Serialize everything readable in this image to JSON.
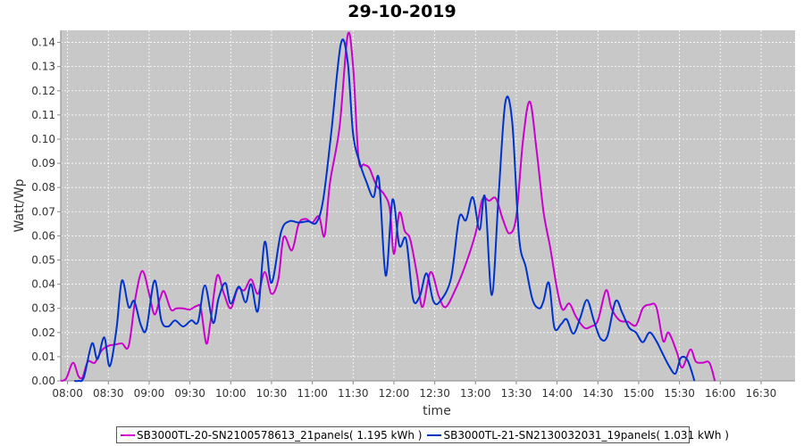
{
  "chart_data": {
    "type": "line",
    "title": "29-10-2019",
    "xlabel": "time",
    "ylabel": "Watt/Wp",
    "xlim": [
      "07:55",
      "16:55"
    ],
    "ylim": [
      0,
      0.145
    ],
    "xticks": [
      "08:00",
      "08:30",
      "09:00",
      "09:30",
      "10:00",
      "10:30",
      "11:00",
      "11:30",
      "12:00",
      "12:30",
      "13:00",
      "13:30",
      "14:00",
      "14:30",
      "15:00",
      "15:30",
      "16:00",
      "16:30"
    ],
    "yticks": [
      "0.00",
      "0.01",
      "0.02",
      "0.03",
      "0.04",
      "0.05",
      "0.06",
      "0.07",
      "0.08",
      "0.09",
      "0.10",
      "0.11",
      "0.12",
      "0.13",
      "0.14"
    ],
    "grid": true,
    "legend_position": "bottom",
    "plot_background": "#c8c8c8",
    "series": [
      {
        "name": "SB3000TL-20-SN2100578613_21panels( 1.195 kWh )",
        "color": "#cc00cc",
        "points": [
          [
            "07:55",
            0.0
          ],
          [
            "07:59",
            0.001
          ],
          [
            "08:04",
            0.0075
          ],
          [
            "08:08",
            0.002
          ],
          [
            "08:11",
            0.0015
          ],
          [
            "08:15",
            0.008
          ],
          [
            "08:20",
            0.0075
          ],
          [
            "08:25",
            0.0125
          ],
          [
            "08:30",
            0.0145
          ],
          [
            "08:35",
            0.015
          ],
          [
            "08:40",
            0.0155
          ],
          [
            "08:45",
            0.0145
          ],
          [
            "08:50",
            0.0345
          ],
          [
            "08:55",
            0.0455
          ],
          [
            "09:00",
            0.036
          ],
          [
            "09:04",
            0.0275
          ],
          [
            "09:08",
            0.034
          ],
          [
            "09:11",
            0.037
          ],
          [
            "09:16",
            0.0295
          ],
          [
            "09:20",
            0.03
          ],
          [
            "09:25",
            0.03
          ],
          [
            "09:30",
            0.0295
          ],
          [
            "09:35",
            0.031
          ],
          [
            "09:38",
            0.03
          ],
          [
            "09:42",
            0.0155
          ],
          [
            "09:45",
            0.024
          ],
          [
            "09:50",
            0.0435
          ],
          [
            "09:55",
            0.036
          ],
          [
            "10:00",
            0.03
          ],
          [
            "10:05",
            0.038
          ],
          [
            "10:10",
            0.0375
          ],
          [
            "10:15",
            0.042
          ],
          [
            "10:20",
            0.036
          ],
          [
            "10:25",
            0.045
          ],
          [
            "10:30",
            0.036
          ],
          [
            "10:35",
            0.042
          ],
          [
            "10:39",
            0.0595
          ],
          [
            "10:45",
            0.054
          ],
          [
            "10:50",
            0.065
          ],
          [
            "10:55",
            0.067
          ],
          [
            "11:00",
            0.0655
          ],
          [
            "11:05",
            0.068
          ],
          [
            "11:09",
            0.06
          ],
          [
            "11:13",
            0.082
          ],
          [
            "11:20",
            0.105
          ],
          [
            "11:26",
            0.143
          ],
          [
            "11:30",
            0.13
          ],
          [
            "11:34",
            0.092
          ],
          [
            "11:38",
            0.0895
          ],
          [
            "11:42",
            0.088
          ],
          [
            "11:47",
            0.081
          ],
          [
            "11:53",
            0.077
          ],
          [
            "11:57",
            0.071
          ],
          [
            "12:00",
            0.0525
          ],
          [
            "12:04",
            0.0695
          ],
          [
            "12:08",
            0.062
          ],
          [
            "12:12",
            0.0585
          ],
          [
            "12:17",
            0.044
          ],
          [
            "12:21",
            0.0305
          ],
          [
            "12:27",
            0.045
          ],
          [
            "12:33",
            0.035
          ],
          [
            "12:38",
            0.0305
          ],
          [
            "12:45",
            0.0375
          ],
          [
            "12:52",
            0.047
          ],
          [
            "13:00",
            0.061
          ],
          [
            "13:05",
            0.075
          ],
          [
            "13:10",
            0.0745
          ],
          [
            "13:15",
            0.0755
          ],
          [
            "13:20",
            0.067
          ],
          [
            "13:25",
            0.061
          ],
          [
            "13:30",
            0.068
          ],
          [
            "13:35",
            0.1
          ],
          [
            "13:40",
            0.1155
          ],
          [
            "13:45",
            0.095
          ],
          [
            "13:50",
            0.07
          ],
          [
            "13:55",
            0.055
          ],
          [
            "14:00",
            0.038
          ],
          [
            "14:04",
            0.0295
          ],
          [
            "14:09",
            0.032
          ],
          [
            "14:14",
            0.0265
          ],
          [
            "14:20",
            0.022
          ],
          [
            "14:25",
            0.0225
          ],
          [
            "14:30",
            0.025
          ],
          [
            "14:36",
            0.0375
          ],
          [
            "14:40",
            0.03
          ],
          [
            "14:46",
            0.025
          ],
          [
            "14:52",
            0.0245
          ],
          [
            "14:58",
            0.023
          ],
          [
            "15:03",
            0.03
          ],
          [
            "15:08",
            0.0315
          ],
          [
            "15:13",
            0.0305
          ],
          [
            "15:18",
            0.0165
          ],
          [
            "15:22",
            0.02
          ],
          [
            "15:28",
            0.012
          ],
          [
            "15:32",
            0.0055
          ],
          [
            "15:38",
            0.013
          ],
          [
            "15:42",
            0.008
          ],
          [
            "15:47",
            0.0075
          ],
          [
            "15:52",
            0.0075
          ],
          [
            "15:56",
            0.0
          ]
        ]
      },
      {
        "name": "SB3000TL-21-SN2130032031_19panels( 1.031 kWh )",
        "color": "#0033cc",
        "points": [
          [
            "08:05",
            0.0
          ],
          [
            "08:08",
            0.0
          ],
          [
            "08:12",
            0.0015
          ],
          [
            "08:18",
            0.0155
          ],
          [
            "08:22",
            0.009
          ],
          [
            "08:27",
            0.018
          ],
          [
            "08:31",
            0.006
          ],
          [
            "08:36",
            0.0215
          ],
          [
            "08:40",
            0.0415
          ],
          [
            "08:45",
            0.0305
          ],
          [
            "08:49",
            0.033
          ],
          [
            "08:54",
            0.023
          ],
          [
            "08:58",
            0.0215
          ],
          [
            "09:04",
            0.0415
          ],
          [
            "09:09",
            0.025
          ],
          [
            "09:14",
            0.0225
          ],
          [
            "09:19",
            0.025
          ],
          [
            "09:25",
            0.0225
          ],
          [
            "09:31",
            0.025
          ],
          [
            "09:36",
            0.0245
          ],
          [
            "09:41",
            0.0395
          ],
          [
            "09:47",
            0.024
          ],
          [
            "09:51",
            0.034
          ],
          [
            "09:56",
            0.0405
          ],
          [
            "10:00",
            0.032
          ],
          [
            "10:06",
            0.039
          ],
          [
            "10:11",
            0.0325
          ],
          [
            "10:15",
            0.04
          ],
          [
            "10:20",
            0.029
          ],
          [
            "10:25",
            0.0575
          ],
          [
            "10:30",
            0.0405
          ],
          [
            "10:37",
            0.0615
          ],
          [
            "10:43",
            0.066
          ],
          [
            "10:50",
            0.0655
          ],
          [
            "10:57",
            0.066
          ],
          [
            "11:03",
            0.0655
          ],
          [
            "11:08",
            0.075
          ],
          [
            "11:14",
            0.103
          ],
          [
            "11:21",
            0.1395
          ],
          [
            "11:26",
            0.132
          ],
          [
            "11:30",
            0.102
          ],
          [
            "11:35",
            0.09
          ],
          [
            "11:40",
            0.082
          ],
          [
            "11:45",
            0.076
          ],
          [
            "11:49",
            0.0835
          ],
          [
            "11:54",
            0.0435
          ],
          [
            "11:59",
            0.075
          ],
          [
            "12:04",
            0.056
          ],
          [
            "12:09",
            0.0585
          ],
          [
            "12:14",
            0.034
          ],
          [
            "12:19",
            0.035
          ],
          [
            "12:24",
            0.0445
          ],
          [
            "12:29",
            0.033
          ],
          [
            "12:34",
            0.033
          ],
          [
            "12:42",
            0.0425
          ],
          [
            "12:48",
            0.0675
          ],
          [
            "12:53",
            0.0665
          ],
          [
            "12:58",
            0.076
          ],
          [
            "13:03",
            0.0625
          ],
          [
            "13:07",
            0.076
          ],
          [
            "13:12",
            0.0355
          ],
          [
            "13:17",
            0.077
          ],
          [
            "13:22",
            0.1155
          ],
          [
            "13:27",
            0.107
          ],
          [
            "13:32",
            0.0595
          ],
          [
            "13:37",
            0.047
          ],
          [
            "13:42",
            0.0335
          ],
          [
            "13:47",
            0.03
          ],
          [
            "13:50",
            0.033
          ],
          [
            "13:54",
            0.0405
          ],
          [
            "13:58",
            0.022
          ],
          [
            "14:03",
            0.0235
          ],
          [
            "14:07",
            0.0255
          ],
          [
            "14:12",
            0.0195
          ],
          [
            "14:17",
            0.026
          ],
          [
            "14:22",
            0.0335
          ],
          [
            "14:27",
            0.025
          ],
          [
            "14:32",
            0.0175
          ],
          [
            "14:37",
            0.0185
          ],
          [
            "14:43",
            0.033
          ],
          [
            "14:48",
            0.028
          ],
          [
            "14:53",
            0.022
          ],
          [
            "14:58",
            0.02
          ],
          [
            "15:03",
            0.016
          ],
          [
            "15:08",
            0.02
          ],
          [
            "15:13",
            0.0165
          ],
          [
            "15:17",
            0.012
          ],
          [
            "15:22",
            0.0065
          ],
          [
            "15:27",
            0.003
          ],
          [
            "15:31",
            0.0095
          ],
          [
            "15:36",
            0.0085
          ],
          [
            "15:41",
            0.0
          ]
        ]
      }
    ]
  }
}
